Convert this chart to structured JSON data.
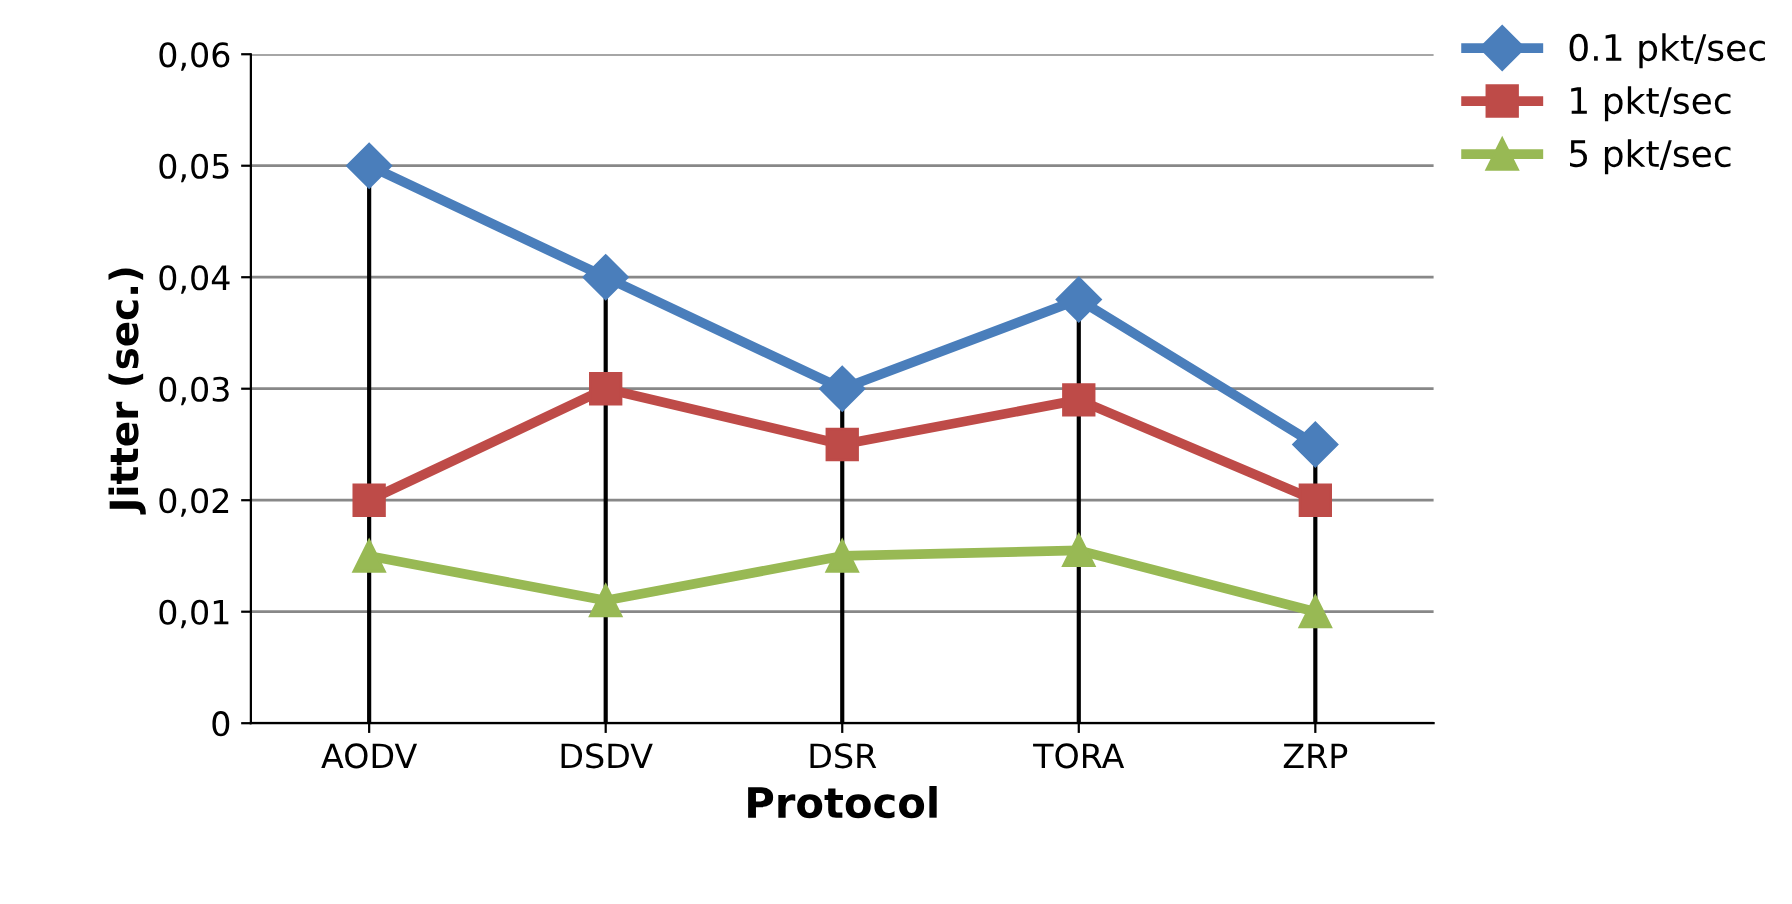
{
  "chart_data": {
    "type": "line",
    "xlabel": "Protocol",
    "ylabel": "Jitter (sec.)",
    "categories": [
      "AODV",
      "DSDV",
      "DSR",
      "TORA",
      "ZRP"
    ],
    "series": [
      {
        "name": "0.1 pkt/sec",
        "color": "#4a7ebb",
        "marker": "diamond",
        "values": [
          0.05,
          0.04,
          0.03,
          0.038,
          0.025
        ]
      },
      {
        "name": "1 pkt/sec",
        "color": "#be4b48",
        "marker": "square",
        "values": [
          0.02,
          0.03,
          0.025,
          0.029,
          0.02
        ]
      },
      {
        "name": "5 pkt/sec",
        "color": "#98b954",
        "marker": "triangle",
        "values": [
          0.015,
          0.011,
          0.015,
          0.0155,
          0.01
        ]
      }
    ],
    "ylim": [
      0,
      0.06
    ],
    "yticks": [
      0,
      {
        "value": 0.01,
        "label": "0,01"
      },
      {
        "value": 0.02,
        "label": "0,02"
      },
      {
        "value": 0.03,
        "label": "0,03"
      },
      {
        "value": 0.04,
        "label": "0,04"
      },
      {
        "value": 0.05,
        "label": "0,05"
      },
      {
        "value": 0.06,
        "label": "0,06"
      }
    ],
    "ref_lines": [
      {
        "axis": "x",
        "value": "AODV",
        "color": "#000000"
      },
      {
        "axis": "x",
        "value": "DSDV",
        "color": "#000000"
      },
      {
        "axis": "x",
        "value": "DSR",
        "color": "#000000"
      },
      {
        "axis": "x",
        "value": "TORA",
        "color": "#000000"
      },
      {
        "axis": "x",
        "value": "ZRP",
        "color": "#000000"
      }
    ],
    "grid": "y",
    "legend": "top right"
  }
}
